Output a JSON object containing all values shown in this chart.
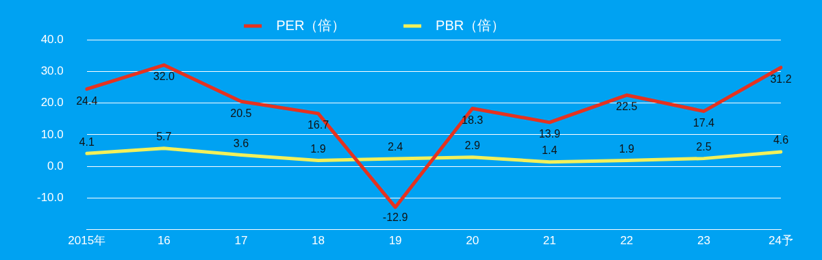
{
  "chart_data": {
    "type": "line",
    "categories": [
      "2015年",
      "16",
      "17",
      "18",
      "19",
      "20",
      "21",
      "22",
      "23",
      "24予"
    ],
    "series": [
      {
        "name": "PER（倍）",
        "color": "#e5321f",
        "values": [
          24.4,
          32.0,
          20.5,
          16.7,
          -12.9,
          18.3,
          13.9,
          22.5,
          17.4,
          31.2
        ],
        "value_labels": [
          "24.4",
          "32.0",
          "20.5",
          "16.7",
          "-12.9",
          "18.3",
          "13.9",
          "22.5",
          "17.4",
          "31.2"
        ]
      },
      {
        "name": "PBR（倍）",
        "color": "#f2f05a",
        "values": [
          4.1,
          5.7,
          3.6,
          1.9,
          2.4,
          2.9,
          1.4,
          1.9,
          2.5,
          4.6
        ],
        "value_labels": [
          "4.1",
          "5.7",
          "3.6",
          "1.9",
          "2.4",
          "2.9",
          "1.4",
          "1.9",
          "2.5",
          "4.6"
        ]
      }
    ],
    "ylim": [
      -20,
      40
    ],
    "yticks": [
      {
        "value": -20,
        "label": null
      },
      {
        "value": -10,
        "label": "-10.0"
      },
      {
        "value": 0,
        "label": "0.0"
      },
      {
        "value": 10,
        "label": "10.0"
      },
      {
        "value": 20,
        "label": "20.0"
      },
      {
        "value": 30,
        "label": "30.0"
      },
      {
        "value": 40,
        "label": "40.0"
      }
    ],
    "grid": "y",
    "legend": "top",
    "marker": "none",
    "line_style": "solid"
  }
}
